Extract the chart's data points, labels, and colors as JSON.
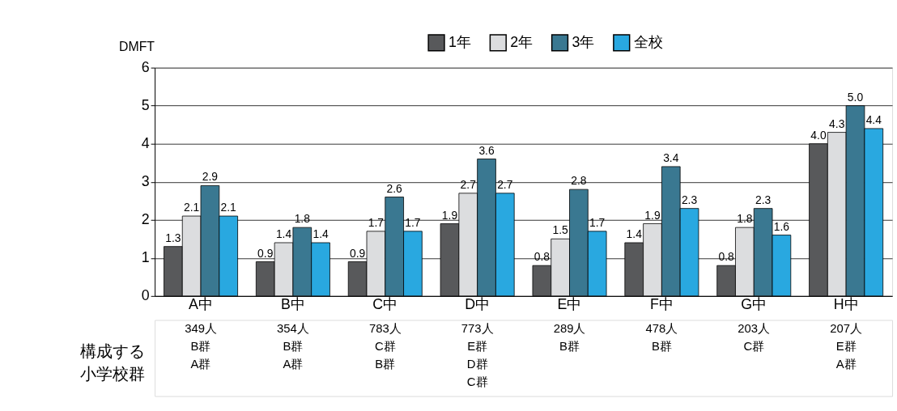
{
  "chart_data": {
    "type": "bar",
    "ylabel": "DMFT",
    "categories": [
      "A中",
      "B中",
      "C中",
      "D中",
      "E中",
      "F中",
      "G中",
      "H中"
    ],
    "series": [
      {
        "name": "1年",
        "color": "#58595b",
        "values": [
          1.3,
          0.9,
          0.9,
          1.9,
          0.8,
          1.4,
          0.8,
          4.0
        ],
        "value_labels": [
          "1.3",
          "0.9",
          "0.9",
          "1.9",
          "0.8",
          "1.4",
          "0.8",
          "4.0"
        ]
      },
      {
        "name": "2年",
        "color": "#dcdddf",
        "values": [
          2.1,
          1.4,
          1.7,
          2.7,
          1.5,
          1.9,
          1.8,
          4.3
        ],
        "value_labels": [
          "2.1",
          "1.4",
          "1.7",
          "2.7",
          "1.5",
          "1.9",
          "1.8",
          "4.3"
        ]
      },
      {
        "name": "3年",
        "color": "#3a7891",
        "values": [
          2.9,
          1.8,
          2.6,
          3.6,
          2.8,
          3.4,
          2.3,
          5.0
        ],
        "value_labels": [
          "2.9",
          "1.8",
          "2.6",
          "3.6",
          "2.8",
          "3.4",
          "2.3",
          "5.0"
        ]
      },
      {
        "name": "全校",
        "color": "#29a8e0",
        "values": [
          2.1,
          1.4,
          1.7,
          2.7,
          1.7,
          2.3,
          1.6,
          4.4
        ],
        "value_labels": [
          "2.1",
          "1.4",
          "1.7",
          "2.7",
          "1.7",
          "2.3",
          "1.6",
          "4.4"
        ]
      }
    ],
    "ylim": [
      0,
      6
    ],
    "yticks": [
      0,
      1,
      2,
      3,
      4,
      5,
      6
    ],
    "grid": "y",
    "legend": "top",
    "annotations": [
      "構成する小学校群",
      "349人\nB群\nA群",
      "354人\nB群\nA群",
      "783人\nC群\nB群",
      "773人\nE群\nD群\nC群",
      "289人\nB群",
      "478人\nB群",
      "203人\nC群",
      "207人\nE群\nA群"
    ]
  }
}
